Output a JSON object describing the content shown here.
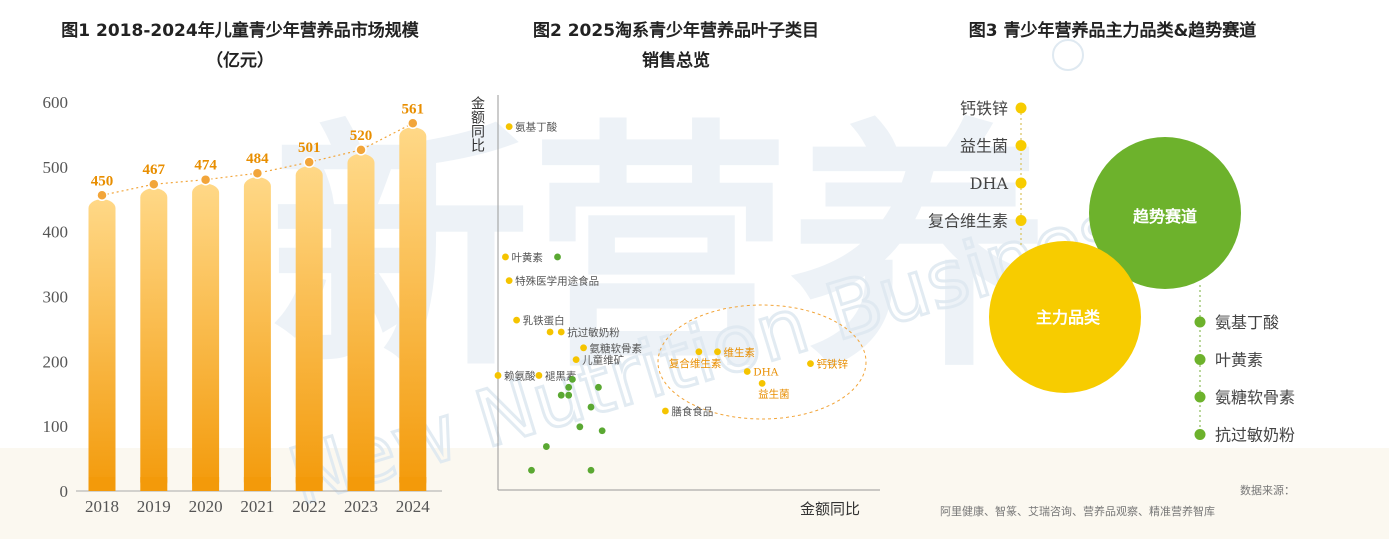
{
  "figure1": {
    "title": "图1 2018-2024年儿童青少年营养品市场规模",
    "title_line2": "（亿元）"
  },
  "figure2": {
    "title": "图2 2025淘系青少年营养品叶子类目",
    "title_line2": "销售总览"
  },
  "figure3": {
    "title": "图3 青少年营养品主力品类&趋势赛道",
    "main_category_label": "主力品类",
    "trend_track_label": "趋势赛道",
    "main_items": [
      "钙铁锌",
      "益生菌",
      "DHA",
      "复合维生素"
    ],
    "trend_items": [
      "氨基丁酸",
      "叶黄素",
      "氨糖软骨素",
      "抗过敏奶粉"
    ],
    "colors": {
      "main": "#f7cc00",
      "trend": "#6db22c"
    }
  },
  "source": {
    "label": "数据来源：",
    "text": "阿里健康、智篆、艾瑞咨询、营养品观察、精准营养智库"
  },
  "chart_data": [
    {
      "type": "bar",
      "title": "图1 2018-2024年儿童青少年营养品市场规模（亿元）",
      "categories": [
        "2018",
        "2019",
        "2020",
        "2021",
        "2022",
        "2023",
        "2024"
      ],
      "values": [
        450,
        467,
        474,
        484,
        501,
        520,
        561
      ],
      "ylim": [
        0,
        600
      ],
      "yticks": [
        0,
        100,
        200,
        300,
        400,
        500,
        600
      ],
      "overlay": "dotted trend line with point markers",
      "colors": {
        "bar_top": "#ffd887",
        "bar_bottom": "#f39a0a",
        "label": "#e88e00"
      }
    },
    {
      "type": "scatter",
      "title": "图2 2025淘系青少年营养品叶子类目销售总览",
      "xlabel": "金额同比",
      "ylabel": "金额同比",
      "axis_ticks": "none",
      "highlight_region": "dashed ellipse around trend categories",
      "points": [
        {
          "label": "氨基丁酸",
          "x": 0.03,
          "y": 0.92,
          "color": "#f5c400"
        },
        {
          "label": "叶黄素",
          "x": 0.02,
          "y": 0.59,
          "color": "#f5c400"
        },
        {
          "label": "",
          "x": 0.16,
          "y": 0.59,
          "color": "#5aa832"
        },
        {
          "label": "特殊医学用途食品",
          "x": 0.03,
          "y": 0.53,
          "color": "#f5c400"
        },
        {
          "label": "乳铁蛋白",
          "x": 0.05,
          "y": 0.43,
          "color": "#f5c400"
        },
        {
          "label": "",
          "x": 0.14,
          "y": 0.4,
          "color": "#f5c400"
        },
        {
          "label": "抗过敏奶粉",
          "x": 0.17,
          "y": 0.4,
          "color": "#f5c400"
        },
        {
          "label": "氨糖软骨素",
          "x": 0.23,
          "y": 0.36,
          "color": "#f5c400"
        },
        {
          "label": "儿童维矿",
          "x": 0.21,
          "y": 0.33,
          "color": "#f5c400"
        },
        {
          "label": "赖氨酸",
          "x": 0.0,
          "y": 0.29,
          "color": "#f5c400"
        },
        {
          "label": "褪黑素",
          "x": 0.11,
          "y": 0.29,
          "color": "#f5c400"
        },
        {
          "label": "复合维生素",
          "x": 0.54,
          "y": 0.35,
          "color": "#f5c400"
        },
        {
          "label": "维生素",
          "x": 0.59,
          "y": 0.35,
          "color": "#f5c400"
        },
        {
          "label": "DHA",
          "x": 0.67,
          "y": 0.3,
          "color": "#f5c400"
        },
        {
          "label": "益生菌",
          "x": 0.71,
          "y": 0.27,
          "color": "#f5c400"
        },
        {
          "label": "钙铁锌",
          "x": 0.84,
          "y": 0.32,
          "color": "#f5c400"
        },
        {
          "label": "膳食食品",
          "x": 0.45,
          "y": 0.2,
          "color": "#f5c400"
        },
        {
          "label": "",
          "x": 0.2,
          "y": 0.28,
          "color": "#5aa832"
        },
        {
          "label": "",
          "x": 0.27,
          "y": 0.26,
          "color": "#5aa832"
        },
        {
          "label": "",
          "x": 0.19,
          "y": 0.26,
          "color": "#5aa832"
        },
        {
          "label": "",
          "x": 0.17,
          "y": 0.24,
          "color": "#5aa832"
        },
        {
          "label": "",
          "x": 0.19,
          "y": 0.24,
          "color": "#5aa832"
        },
        {
          "label": "",
          "x": 0.25,
          "y": 0.21,
          "color": "#5aa832"
        },
        {
          "label": "",
          "x": 0.22,
          "y": 0.16,
          "color": "#5aa832"
        },
        {
          "label": "",
          "x": 0.28,
          "y": 0.15,
          "color": "#5aa832"
        },
        {
          "label": "",
          "x": 0.13,
          "y": 0.11,
          "color": "#5aa832"
        },
        {
          "label": "",
          "x": 0.09,
          "y": 0.05,
          "color": "#5aa832"
        },
        {
          "label": "",
          "x": 0.25,
          "y": 0.05,
          "color": "#5aa832"
        }
      ]
    }
  ]
}
